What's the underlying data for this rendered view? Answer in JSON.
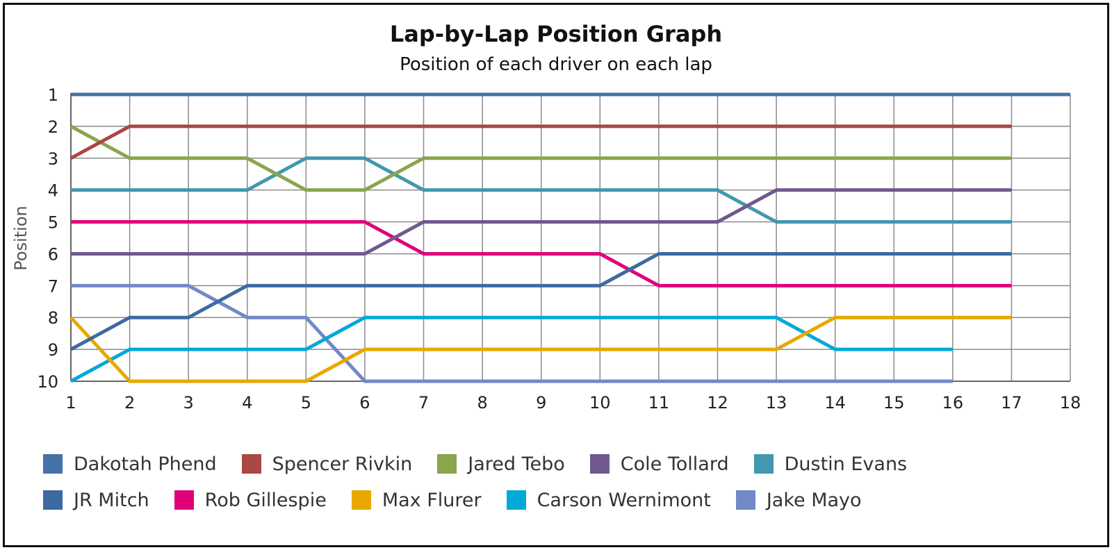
{
  "chart_data": {
    "type": "line",
    "title": "Lap-by-Lap Position Graph",
    "subtitle": "Position of each driver on each lap",
    "ylabel": "Position",
    "xlabel": "",
    "xlim": [
      1,
      18
    ],
    "ylim": [
      1,
      10
    ],
    "y_reversed": true,
    "x_ticks": [
      "1",
      "2",
      "3",
      "4",
      "5",
      "6",
      "7",
      "8",
      "9",
      "10",
      "11",
      "12",
      "13",
      "14",
      "15",
      "16",
      "17",
      "18"
    ],
    "y_ticks": [
      "1",
      "2",
      "3",
      "4",
      "5",
      "6",
      "7",
      "8",
      "9",
      "10"
    ],
    "grid": true,
    "legend_position": "bottom",
    "series": [
      {
        "name": "Dakotah Phend",
        "color": "#4572a7",
        "x": [
          1,
          18
        ],
        "values": [
          1,
          1
        ]
      },
      {
        "name": "Spencer Rivkin",
        "color": "#aa4643",
        "x": [
          1,
          2,
          3,
          4,
          5,
          6,
          7,
          8,
          9,
          10,
          11,
          12,
          13,
          14,
          15,
          16,
          17
        ],
        "values": [
          3,
          2,
          2,
          2,
          2,
          2,
          2,
          2,
          2,
          2,
          2,
          2,
          2,
          2,
          2,
          2,
          2
        ]
      },
      {
        "name": "Jared Tebo",
        "color": "#89a54e",
        "x": [
          1,
          2,
          3,
          4,
          5,
          6,
          7,
          8,
          9,
          10,
          11,
          12,
          13,
          14,
          15,
          16,
          17
        ],
        "values": [
          2,
          3,
          3,
          3,
          4,
          4,
          3,
          3,
          3,
          3,
          3,
          3,
          3,
          3,
          3,
          3,
          3
        ]
      },
      {
        "name": "Cole Tollard",
        "color": "#71588f",
        "x": [
          1,
          2,
          3,
          4,
          5,
          6,
          7,
          8,
          9,
          10,
          11,
          12,
          13,
          14,
          15,
          16,
          17
        ],
        "values": [
          6,
          6,
          6,
          6,
          6,
          6,
          5,
          5,
          5,
          5,
          5,
          5,
          4,
          4,
          4,
          4,
          4
        ]
      },
      {
        "name": "Dustin Evans",
        "color": "#4198af",
        "x": [
          1,
          2,
          3,
          4,
          5,
          6,
          7,
          8,
          9,
          10,
          11,
          12,
          13,
          14,
          15,
          16,
          17
        ],
        "values": [
          4,
          4,
          4,
          4,
          3,
          3,
          4,
          4,
          4,
          4,
          4,
          4,
          5,
          5,
          5,
          5,
          5
        ]
      },
      {
        "name": "JR Mitch",
        "color": "#3d6aa0",
        "x": [
          1,
          2,
          3,
          4,
          5,
          6,
          7,
          8,
          9,
          10,
          11,
          12,
          13,
          14,
          15,
          16,
          17
        ],
        "values": [
          9,
          8,
          8,
          7,
          7,
          7,
          7,
          7,
          7,
          7,
          6,
          6,
          6,
          6,
          6,
          6,
          6
        ]
      },
      {
        "name": "Rob Gillespie",
        "color": "#e0007a",
        "x": [
          1,
          2,
          3,
          4,
          5,
          6,
          7,
          8,
          9,
          10,
          11,
          12,
          13,
          14,
          15,
          16,
          17
        ],
        "values": [
          5,
          5,
          5,
          5,
          5,
          5,
          6,
          6,
          6,
          6,
          7,
          7,
          7,
          7,
          7,
          7,
          7
        ]
      },
      {
        "name": "Max Flurer",
        "color": "#e8a800",
        "x": [
          1,
          2,
          3,
          4,
          5,
          6,
          7,
          8,
          9,
          10,
          11,
          12,
          13,
          14,
          15,
          16,
          17
        ],
        "values": [
          8,
          10,
          10,
          10,
          10,
          9,
          9,
          9,
          9,
          9,
          9,
          9,
          9,
          8,
          8,
          8,
          8
        ]
      },
      {
        "name": "Carson Wernimont",
        "color": "#00a9d8",
        "x": [
          1,
          2,
          3,
          4,
          5,
          6,
          7,
          8,
          9,
          10,
          11,
          12,
          13,
          14,
          15,
          16
        ],
        "values": [
          10,
          9,
          9,
          9,
          9,
          8,
          8,
          8,
          8,
          8,
          8,
          8,
          8,
          9,
          9,
          9
        ]
      },
      {
        "name": "Jake Mayo",
        "color": "#7388c7",
        "x": [
          1,
          2,
          3,
          4,
          5,
          6,
          7,
          8,
          9,
          10,
          11,
          12,
          13,
          14,
          15,
          16
        ],
        "values": [
          7,
          7,
          7,
          8,
          8,
          10,
          10,
          10,
          10,
          10,
          10,
          10,
          10,
          10,
          10,
          10
        ]
      }
    ]
  }
}
